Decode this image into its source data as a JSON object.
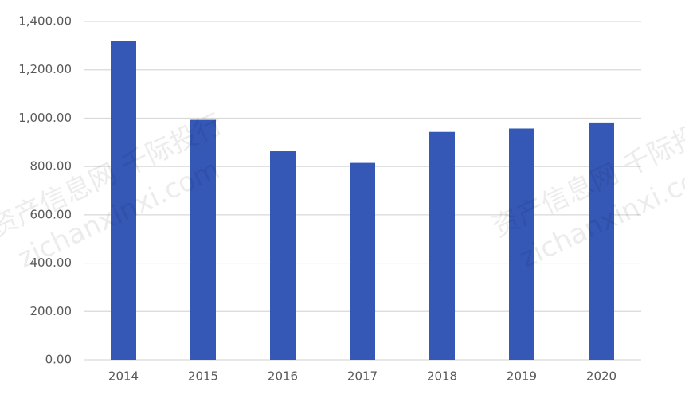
{
  "chart_data": {
    "type": "bar",
    "categories": [
      "2014",
      "2015",
      "2016",
      "2017",
      "2018",
      "2019",
      "2020"
    ],
    "values": [
      1320,
      993,
      863,
      815,
      943,
      957,
      982
    ],
    "color": "#3558b7",
    "ylim": [
      0,
      1400
    ],
    "yticks": [
      {
        "value": 0,
        "label": "0.00"
      },
      {
        "value": 200,
        "label": "200.00"
      },
      {
        "value": 400,
        "label": "400.00"
      },
      {
        "value": 600,
        "label": "600.00"
      },
      {
        "value": 800,
        "label": "800.00"
      },
      {
        "value": 1000,
        "label": "1,000.00"
      },
      {
        "value": 1200,
        "label": "1,200.00"
      },
      {
        "value": 1400,
        "label": "1,400.00"
      }
    ],
    "grid": true,
    "watermark": [
      "资产信息网 千际投行",
      "zichanxinxi.com"
    ]
  }
}
